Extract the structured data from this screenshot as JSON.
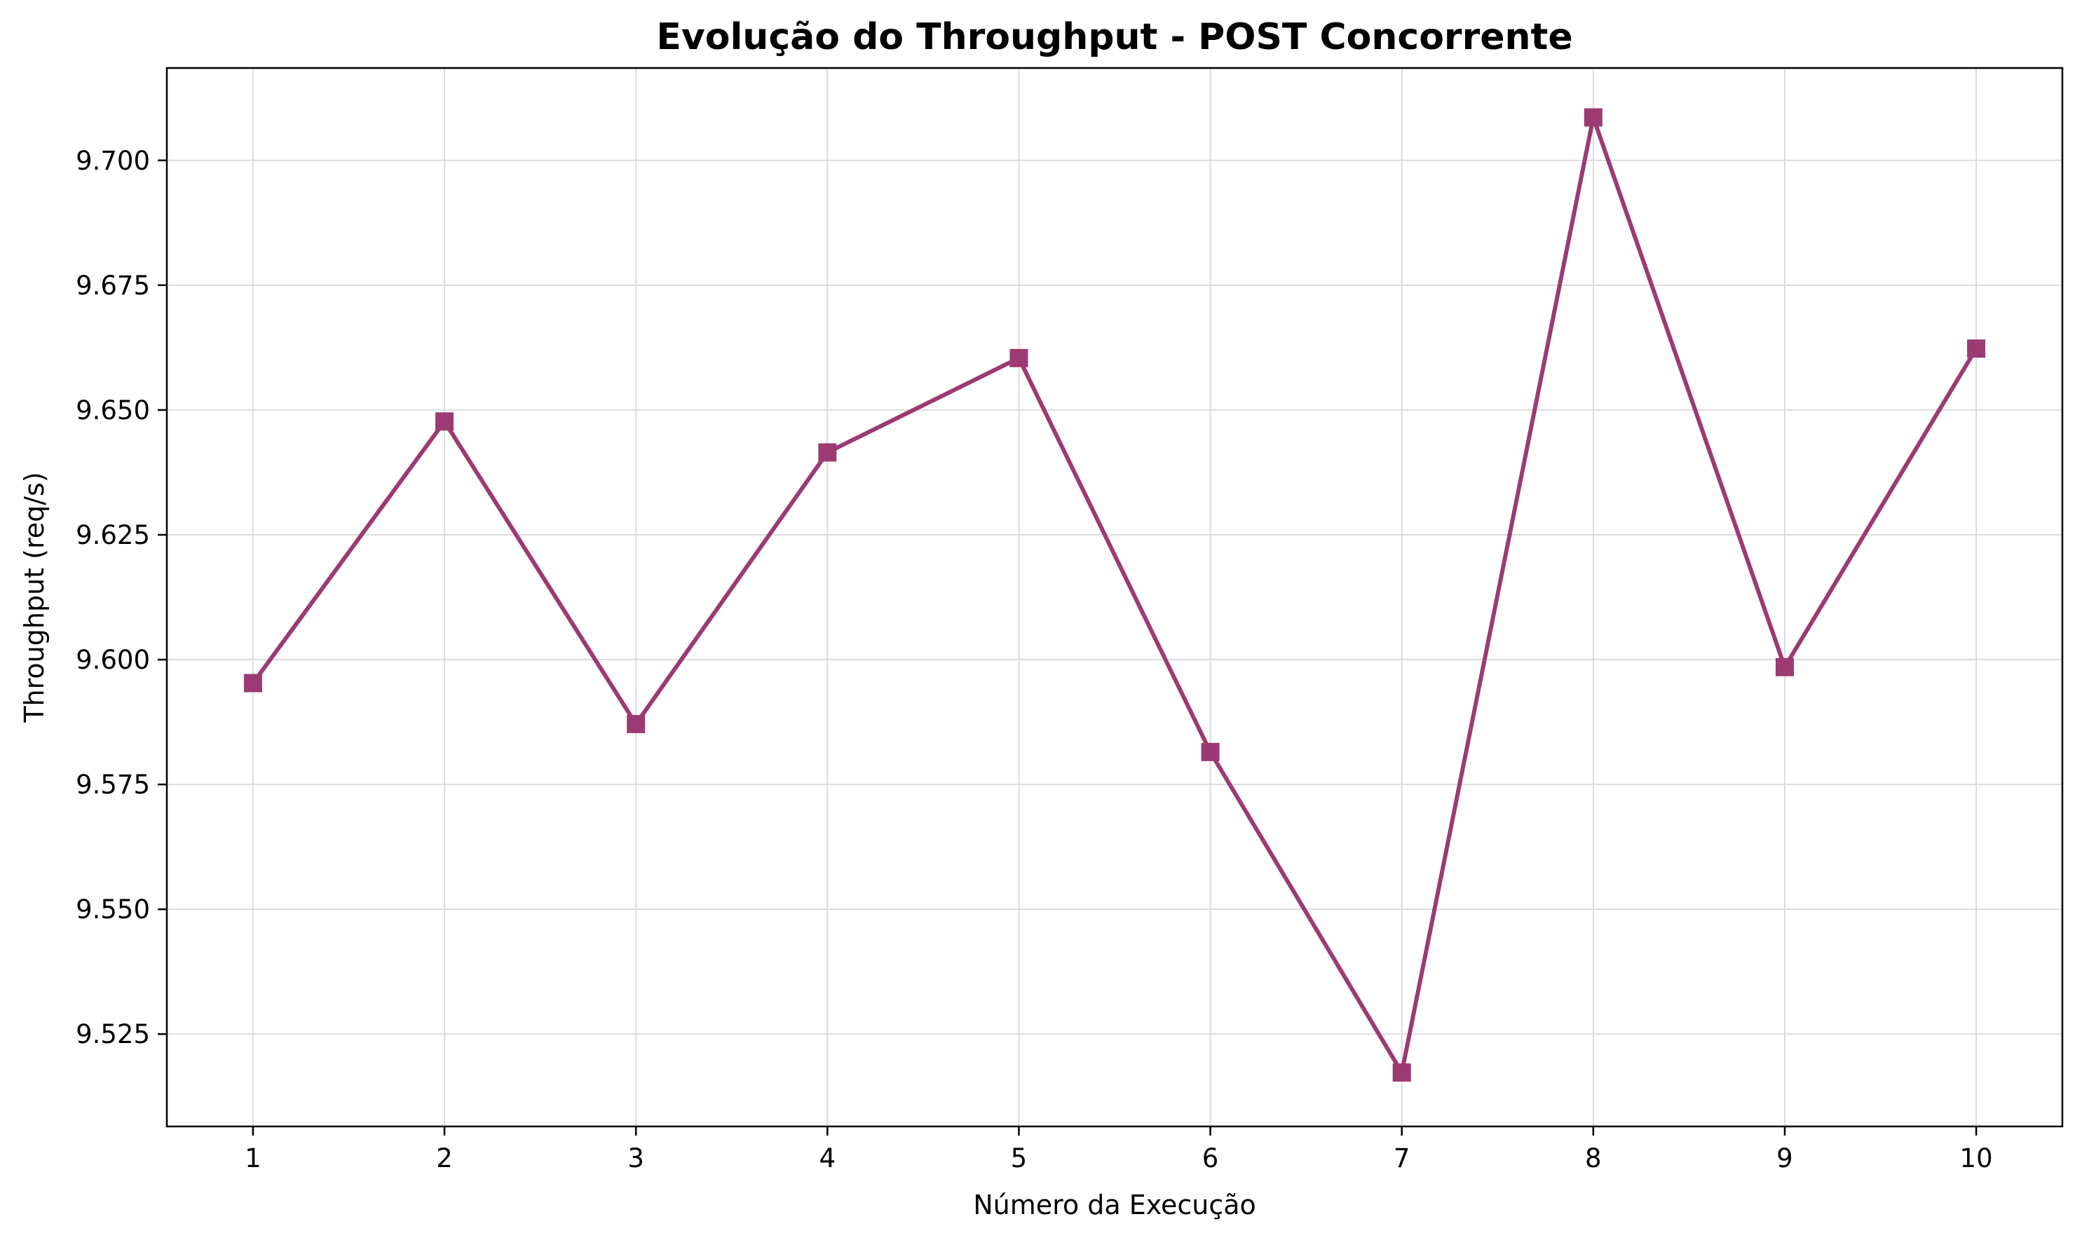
{
  "chart_data": {
    "type": "line",
    "title": "Evolução do Throughput - POST Concorrente",
    "xlabel": "Número da Execução",
    "ylabel": "Throughput (req/s)",
    "x": [
      1,
      2,
      3,
      4,
      5,
      6,
      7,
      8,
      9,
      10
    ],
    "x_tick_labels": [
      "1",
      "2",
      "3",
      "4",
      "5",
      "6",
      "7",
      "8",
      "9",
      "10"
    ],
    "y_ticks": [
      9.525,
      9.55,
      9.575,
      9.6,
      9.625,
      9.65,
      9.675,
      9.7
    ],
    "y_tick_labels": [
      "9.525",
      "9.550",
      "9.575",
      "9.600",
      "9.625",
      "9.650",
      "9.675",
      "9.700"
    ],
    "xlim": [
      0.55,
      10.45
    ],
    "ylim": [
      9.5065,
      9.7185
    ],
    "series": [
      {
        "values": [
          9.5953,
          9.6477,
          9.5871,
          9.6415,
          9.6604,
          9.5815,
          9.5173,
          9.7086,
          9.5985,
          9.6623
        ],
        "color": "#9c3a73",
        "marker": "square"
      }
    ],
    "grid": true,
    "grid_color": "#dcdcdc",
    "legend": "none"
  }
}
